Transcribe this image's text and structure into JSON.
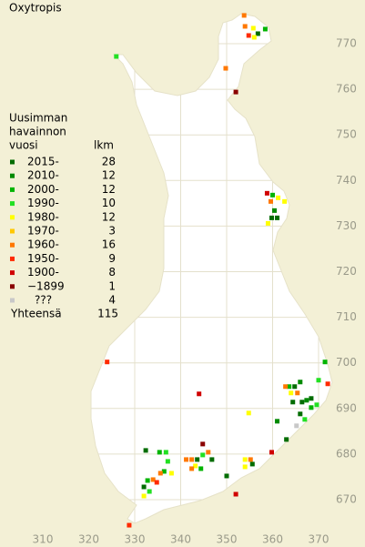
{
  "title": "Oxytropis",
  "legend": {
    "header": [
      "Uusimman",
      "havainnon",
      "vuosi"
    ],
    "count_header": "lkm",
    "rows": [
      {
        "label": "2015-",
        "count": 28,
        "color": "#006c00"
      },
      {
        "label": "2010-",
        "count": 12,
        "color": "#008a00"
      },
      {
        "label": "2000-",
        "count": 12,
        "color": "#00b400"
      },
      {
        "label": "1990-",
        "count": 10,
        "color": "#22e022"
      },
      {
        "label": "1980-",
        "count": 12,
        "color": "#ffff00"
      },
      {
        "label": "1970-",
        "count": 3,
        "color": "#ffc800"
      },
      {
        "label": "1960-",
        "count": 16,
        "color": "#ff7800"
      },
      {
        "label": "1950-",
        "count": 9,
        "color": "#ff2a00"
      },
      {
        "label": "1900-",
        "count": 8,
        "color": "#d00000"
      },
      {
        "label": "−1899",
        "count": 1,
        "color": "#8a0000"
      },
      {
        "label": "???",
        "count": 4,
        "color": "#c8c8c8"
      }
    ],
    "total_label": "Yhteensä",
    "total": 115
  },
  "axes": {
    "xticks": [
      310,
      320,
      330,
      340,
      350,
      360,
      370
    ],
    "yticks": [
      670,
      680,
      690,
      700,
      710,
      720,
      730,
      740,
      750,
      760,
      770
    ]
  },
  "points": [
    {
      "x": 326.0,
      "y": 767.2,
      "p": 3
    },
    {
      "x": 353.8,
      "y": 776.2,
      "p": 6
    },
    {
      "x": 354.0,
      "y": 773.8,
      "p": 6
    },
    {
      "x": 354.8,
      "y": 771.8,
      "p": 7
    },
    {
      "x": 355.8,
      "y": 773.4,
      "p": 4
    },
    {
      "x": 356.8,
      "y": 772.2,
      "p": 0
    },
    {
      "x": 358.4,
      "y": 773.2,
      "p": 2
    },
    {
      "x": 356.0,
      "y": 771.4,
      "p": 4
    },
    {
      "x": 349.8,
      "y": 764.6,
      "p": 6
    },
    {
      "x": 352.0,
      "y": 759.4,
      "p": 9
    },
    {
      "x": 358.8,
      "y": 737.2,
      "p": 8
    },
    {
      "x": 360.0,
      "y": 736.8,
      "p": 2
    },
    {
      "x": 359.6,
      "y": 735.4,
      "p": 6
    },
    {
      "x": 361.2,
      "y": 736.2,
      "p": 4
    },
    {
      "x": 362.6,
      "y": 735.4,
      "p": 4
    },
    {
      "x": 359.8,
      "y": 731.8,
      "p": 0
    },
    {
      "x": 361.0,
      "y": 731.8,
      "p": 0
    },
    {
      "x": 359.0,
      "y": 730.6,
      "p": 4
    },
    {
      "x": 360.4,
      "y": 733.4,
      "p": 1
    },
    {
      "x": 324.0,
      "y": 700.2,
      "p": 7
    },
    {
      "x": 344.0,
      "y": 693.2,
      "p": 8
    },
    {
      "x": 371.4,
      "y": 700.2,
      "p": 2
    },
    {
      "x": 370.0,
      "y": 696.2,
      "p": 3
    },
    {
      "x": 372.0,
      "y": 695.4,
      "p": 7
    },
    {
      "x": 363.6,
      "y": 694.8,
      "p": 2
    },
    {
      "x": 364.8,
      "y": 694.8,
      "p": 0
    },
    {
      "x": 366.0,
      "y": 695.8,
      "p": 1
    },
    {
      "x": 364.0,
      "y": 693.4,
      "p": 4
    },
    {
      "x": 365.4,
      "y": 693.4,
      "p": 6
    },
    {
      "x": 368.4,
      "y": 692.2,
      "p": 0
    },
    {
      "x": 369.6,
      "y": 690.8,
      "p": 3
    },
    {
      "x": 367.4,
      "y": 691.8,
      "p": 1
    },
    {
      "x": 366.4,
      "y": 691.4,
      "p": 0
    },
    {
      "x": 364.4,
      "y": 691.4,
      "p": 0
    },
    {
      "x": 368.4,
      "y": 690.2,
      "p": 2
    },
    {
      "x": 366.0,
      "y": 688.8,
      "p": 0
    },
    {
      "x": 362.8,
      "y": 694.8,
      "p": 6
    },
    {
      "x": 354.8,
      "y": 689.0,
      "p": 4
    },
    {
      "x": 361.0,
      "y": 687.2,
      "p": 1
    },
    {
      "x": 365.2,
      "y": 686.2,
      "p": 10
    },
    {
      "x": 363.0,
      "y": 683.2,
      "p": 0
    },
    {
      "x": 367.0,
      "y": 687.6,
      "p": 3
    },
    {
      "x": 359.8,
      "y": 680.4,
      "p": 8
    },
    {
      "x": 344.8,
      "y": 682.2,
      "p": 9
    },
    {
      "x": 346.0,
      "y": 680.4,
      "p": 6
    },
    {
      "x": 344.8,
      "y": 679.8,
      "p": 3
    },
    {
      "x": 343.6,
      "y": 678.8,
      "p": 0
    },
    {
      "x": 342.4,
      "y": 678.8,
      "p": 6
    },
    {
      "x": 341.2,
      "y": 678.8,
      "p": 6
    },
    {
      "x": 343.2,
      "y": 677.4,
      "p": 4
    },
    {
      "x": 344.4,
      "y": 676.8,
      "p": 2
    },
    {
      "x": 346.8,
      "y": 678.8,
      "p": 0
    },
    {
      "x": 342.4,
      "y": 676.8,
      "p": 6
    },
    {
      "x": 332.4,
      "y": 680.8,
      "p": 0
    },
    {
      "x": 335.4,
      "y": 680.4,
      "p": 2
    },
    {
      "x": 336.8,
      "y": 680.4,
      "p": 3
    },
    {
      "x": 337.2,
      "y": 678.4,
      "p": 3
    },
    {
      "x": 336.4,
      "y": 676.2,
      "p": 2
    },
    {
      "x": 338.0,
      "y": 675.8,
      "p": 4
    },
    {
      "x": 335.6,
      "y": 675.8,
      "p": 6
    },
    {
      "x": 334.0,
      "y": 674.4,
      "p": 6
    },
    {
      "x": 332.8,
      "y": 674.2,
      "p": 2
    },
    {
      "x": 332.0,
      "y": 672.8,
      "p": 0
    },
    {
      "x": 333.2,
      "y": 671.8,
      "p": 3
    },
    {
      "x": 334.8,
      "y": 673.8,
      "p": 7
    },
    {
      "x": 332.0,
      "y": 670.8,
      "p": 4
    },
    {
      "x": 354.0,
      "y": 678.8,
      "p": 4
    },
    {
      "x": 355.2,
      "y": 678.8,
      "p": 6
    },
    {
      "x": 354.0,
      "y": 677.2,
      "p": 4
    },
    {
      "x": 355.6,
      "y": 677.8,
      "p": 0
    },
    {
      "x": 350.0,
      "y": 675.2,
      "p": 0
    },
    {
      "x": 352.0,
      "y": 671.2,
      "p": 8
    },
    {
      "x": 328.8,
      "y": 664.4,
      "p": 7
    }
  ]
}
